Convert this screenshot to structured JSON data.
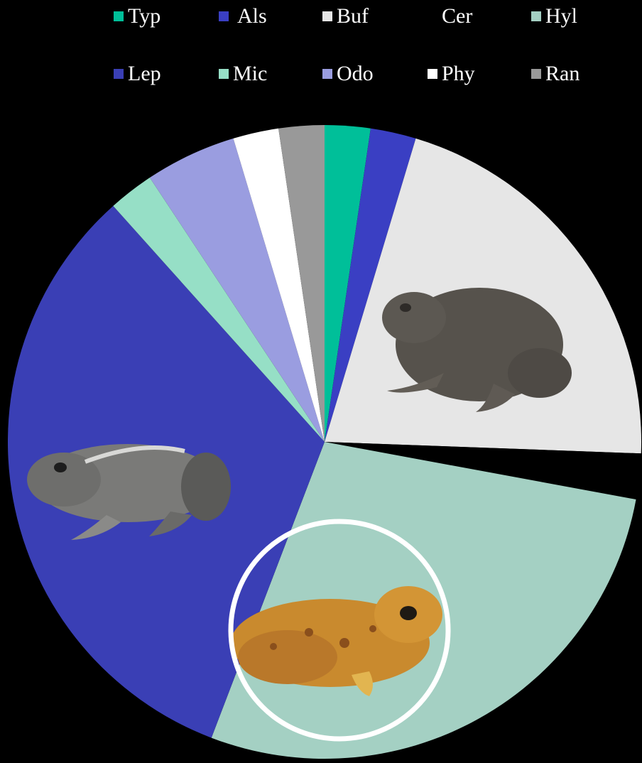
{
  "chart_data": {
    "type": "pie",
    "title": "",
    "legend_position": "top",
    "series": [
      {
        "name": "Typ",
        "value": 1,
        "color": "#00BF99"
      },
      {
        "name": "Als",
        "value": 1,
        "color": "#3A3FC3"
      },
      {
        "name": "Buf",
        "value": 9,
        "color": "#E6E6E6"
      },
      {
        "name": "Cer",
        "value": 1,
        "color": "#000000"
      },
      {
        "name": "Hyl",
        "value": 12,
        "color": "#A4D0C3"
      },
      {
        "name": "Lep",
        "value": 14,
        "color": "#3A3FB5"
      },
      {
        "name": "Mic",
        "value": 1,
        "color": "#96DFC6"
      },
      {
        "name": "Odo",
        "value": 2,
        "color": "#9A9DE0"
      },
      {
        "name": "Phy",
        "value": 1,
        "color": "#FFFFFF"
      },
      {
        "name": "Ran",
        "value": 1,
        "color": "#999999"
      }
    ],
    "slice_images": [
      {
        "slice": "Buf",
        "icon": "toad-icon"
      },
      {
        "slice": "Hyl",
        "icon": "tree-frog-icon",
        "highlighted": true
      },
      {
        "slice": "Lep",
        "icon": "grey-frog-icon"
      }
    ]
  }
}
